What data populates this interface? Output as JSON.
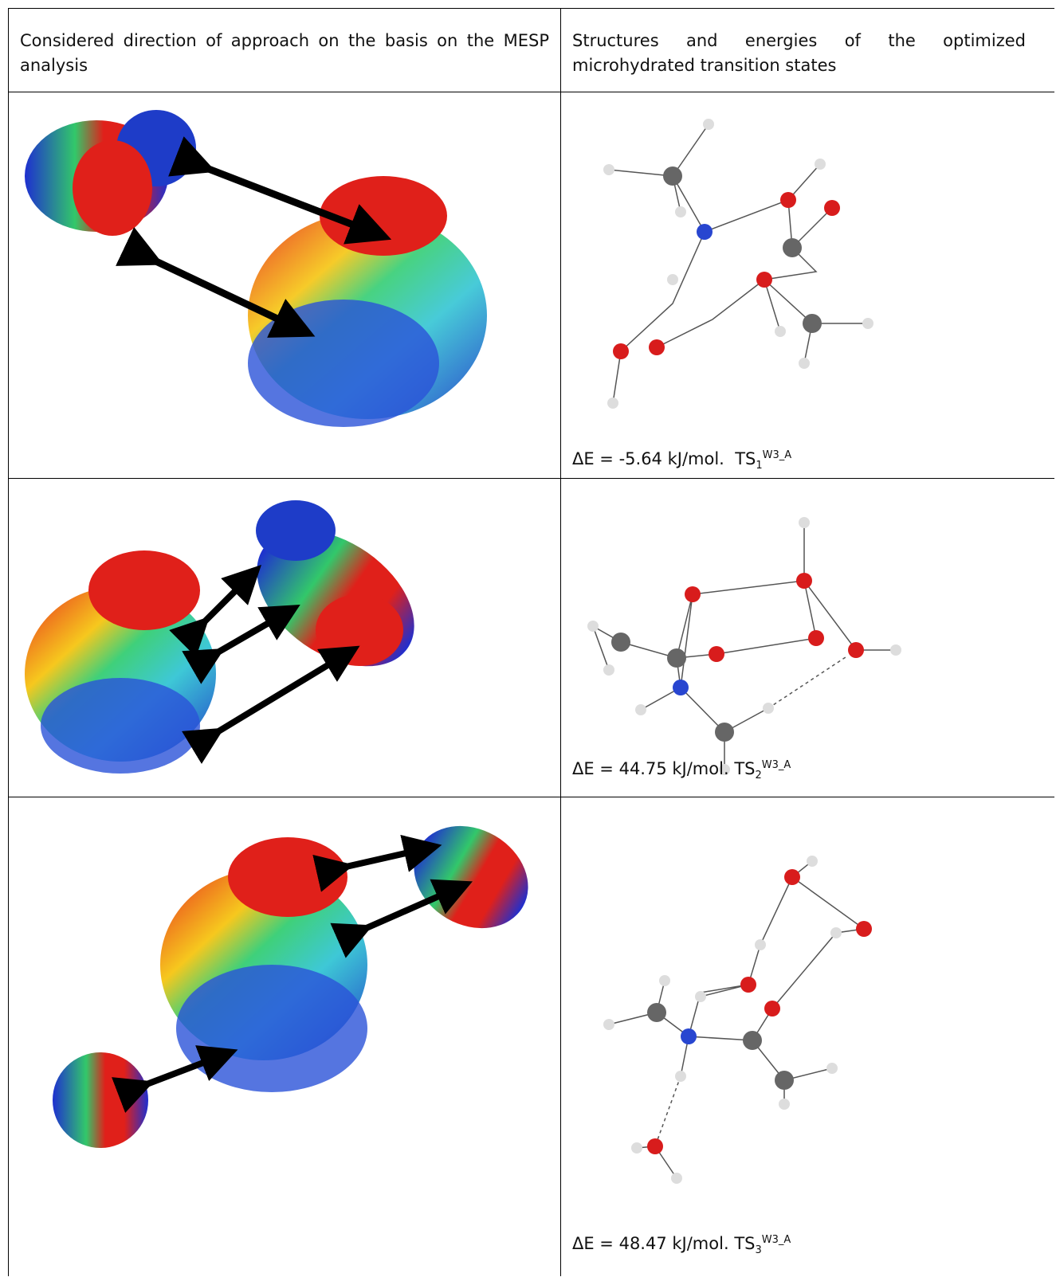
{
  "table": {
    "header": [
      "Considered direction of approach on the basis on the MESP analysis",
      "Structures and energies of the optimized microhydrated transition states"
    ],
    "rows": [
      {
        "energy": "ΔE = -5.64 kJ/mol.",
        "label": {
          "base": "TS",
          "sub": "1",
          "sup": "W3_A"
        }
      },
      {
        "energy": "ΔE = 44.75 kJ/mol.",
        "label": {
          "base": "TS",
          "sub": "2",
          "sup": "W3_A"
        }
      },
      {
        "energy": "ΔE = 48.47 kJ/mol.",
        "label": {
          "base": "TS",
          "sub": "3",
          "sup": "W3_A"
        }
      }
    ]
  }
}
